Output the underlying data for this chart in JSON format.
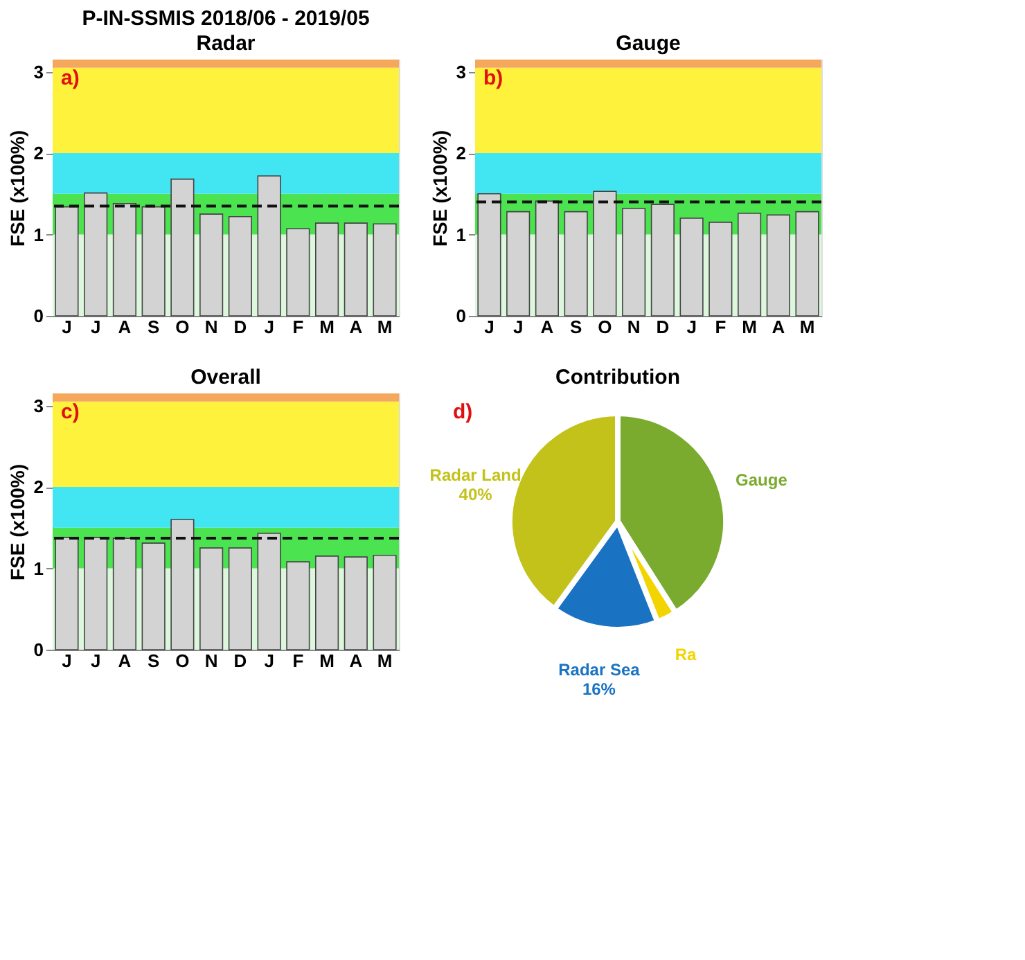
{
  "chart_data": [
    {
      "type": "bar",
      "title": "P-IN-SSMIS 2018/06 - 2019/05",
      "subtitle": "Radar",
      "ylabel": "FSE (x100%)",
      "categories": [
        "J",
        "J",
        "A",
        "S",
        "O",
        "N",
        "D",
        "J",
        "F",
        "M",
        "A",
        "M"
      ],
      "series": [
        {
          "color": "#d3d3d3",
          "values": [
            1.34,
            1.51,
            1.38,
            1.34,
            1.68,
            1.25,
            1.22,
            1.72,
            1.07,
            1.14,
            1.14,
            1.13
          ]
        }
      ],
      "ylim": [
        0,
        3.15
      ],
      "yticks": [
        0,
        1,
        2,
        3
      ],
      "grid": false,
      "bands": [
        {
          "axis": "y",
          "from": 0,
          "to": 1,
          "color": "#dcf7dc"
        },
        {
          "axis": "y",
          "from": 1,
          "to": 1.5,
          "color": "#4be34f"
        },
        {
          "axis": "y",
          "from": 1.5,
          "to": 2,
          "color": "#42e6f2"
        },
        {
          "axis": "y",
          "from": 2,
          "to": 3.05,
          "color": "#fff23c"
        },
        {
          "axis": "y",
          "from": 3.05,
          "to": 3.15,
          "color": "#f5a85c"
        }
      ],
      "ref_lines": [
        {
          "axis": "y",
          "value": 1.35,
          "color": "#111111",
          "line_style": "dashed"
        }
      ],
      "annotations": [
        "a)"
      ]
    },
    {
      "type": "bar",
      "title": "Gauge",
      "ylabel": "FSE (x100%)",
      "categories": [
        "J",
        "J",
        "A",
        "S",
        "O",
        "N",
        "D",
        "J",
        "F",
        "M",
        "A",
        "M"
      ],
      "series": [
        {
          "color": "#d3d3d3",
          "values": [
            1.5,
            1.28,
            1.41,
            1.28,
            1.53,
            1.32,
            1.37,
            1.2,
            1.15,
            1.26,
            1.24,
            1.28
          ]
        }
      ],
      "ylim": [
        0,
        3.15
      ],
      "yticks": [
        0,
        1,
        2,
        3
      ],
      "grid": false,
      "bands": [
        {
          "axis": "y",
          "from": 0,
          "to": 1,
          "color": "#dcf7dc"
        },
        {
          "axis": "y",
          "from": 1,
          "to": 1.5,
          "color": "#4be34f"
        },
        {
          "axis": "y",
          "from": 1.5,
          "to": 2,
          "color": "#42e6f2"
        },
        {
          "axis": "y",
          "from": 2,
          "to": 3.05,
          "color": "#fff23c"
        },
        {
          "axis": "y",
          "from": 3.05,
          "to": 3.15,
          "color": "#f5a85c"
        }
      ],
      "ref_lines": [
        {
          "axis": "y",
          "value": 1.4,
          "color": "#111111",
          "line_style": "dashed"
        }
      ],
      "annotations": [
        "b)"
      ]
    },
    {
      "type": "bar",
      "title": "Overall",
      "ylabel": "FSE (x100%)",
      "categories": [
        "J",
        "J",
        "A",
        "S",
        "O",
        "N",
        "D",
        "J",
        "F",
        "M",
        "A",
        "M"
      ],
      "series": [
        {
          "color": "#d3d3d3",
          "values": [
            1.38,
            1.38,
            1.37,
            1.31,
            1.6,
            1.25,
            1.25,
            1.43,
            1.08,
            1.15,
            1.14,
            1.16
          ]
        }
      ],
      "ylim": [
        0,
        3.15
      ],
      "yticks": [
        0,
        1,
        2,
        3
      ],
      "grid": false,
      "bands": [
        {
          "axis": "y",
          "from": 0,
          "to": 1,
          "color": "#dcf7dc"
        },
        {
          "axis": "y",
          "from": 1,
          "to": 1.5,
          "color": "#4be34f"
        },
        {
          "axis": "y",
          "from": 1.5,
          "to": 2,
          "color": "#42e6f2"
        },
        {
          "axis": "y",
          "from": 2,
          "to": 3.05,
          "color": "#fff23c"
        },
        {
          "axis": "y",
          "from": 3.05,
          "to": 3.15,
          "color": "#f5a85c"
        }
      ],
      "ref_lines": [
        {
          "axis": "y",
          "value": 1.37,
          "color": "#111111",
          "line_style": "dashed"
        }
      ],
      "annotations": [
        "c)"
      ]
    },
    {
      "type": "pie",
      "title": "Contribution",
      "categories": [
        "Gauge",
        "Ra",
        "Radar Sea",
        "Radar Land"
      ],
      "values": [
        41,
        3,
        16,
        40
      ],
      "value_labels": [
        null,
        null,
        "16%",
        "40%"
      ],
      "colors": [
        "#7aab2e",
        "#f2d500",
        "#1a73c2",
        "#c3c21a"
      ],
      "annotations": [
        "d)"
      ]
    }
  ]
}
